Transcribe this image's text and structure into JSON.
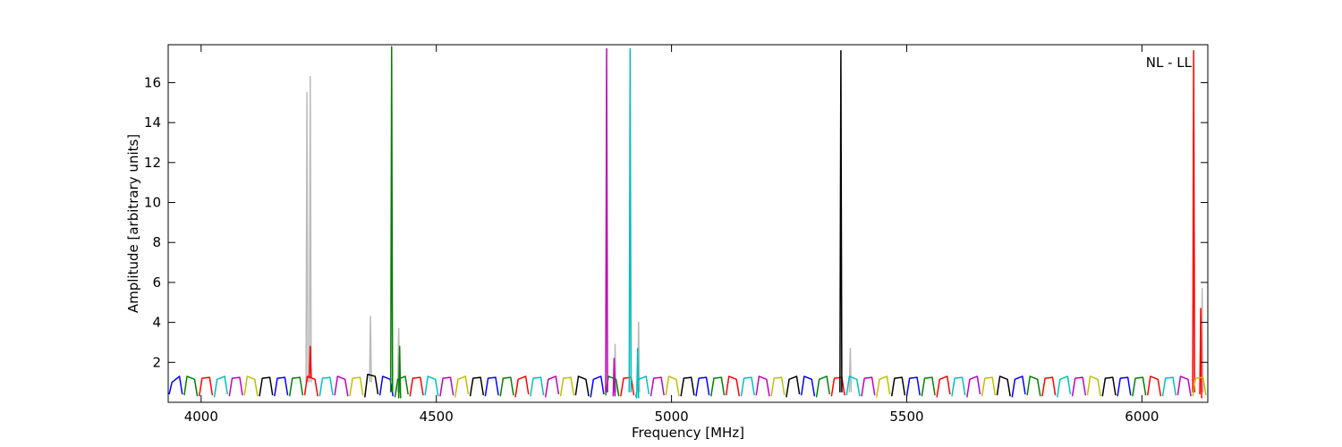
{
  "chart_data": {
    "type": "line",
    "xlabel": "Frequency [MHz]",
    "ylabel": "Amplitude [arbitrary units]",
    "annotation": "NL - LL",
    "xlim": [
      3930,
      6140
    ],
    "ylim": [
      0,
      17.9
    ],
    "xticks": [
      4000,
      4500,
      5000,
      5500,
      6000
    ],
    "yticks": [
      2,
      4,
      6,
      8,
      10,
      12,
      14,
      16
    ],
    "series": [
      {
        "color": "#bbbbbb",
        "x": [
          4223,
          4225,
          4227,
          null,
          4230,
          4232,
          4234,
          null,
          4358,
          4360,
          4362,
          null,
          4418,
          4420,
          4422,
          null,
          4878,
          4880,
          4882,
          null,
          4928,
          4930,
          4932,
          null,
          5378,
          5380,
          5382,
          null,
          6126,
          6128,
          6130
        ],
        "values": [
          1,
          15.5,
          1,
          null,
          1,
          16.3,
          1,
          null,
          1,
          4.3,
          1,
          null,
          0.5,
          3.7,
          0.5,
          null,
          0.5,
          2.9,
          0.5,
          null,
          0.5,
          4.0,
          0.5,
          null,
          0.5,
          2.7,
          0.5,
          null,
          0.5,
          5.7,
          0.5
        ]
      },
      {
        "color": "#0000ff",
        "x": [
          3932,
          3938,
          3954,
          3960,
          null,
          4156,
          4162,
          4178,
          4184,
          null,
          4380,
          4386,
          4402,
          4408,
          null,
          4604,
          4610,
          4626,
          4632,
          null,
          4828,
          4834,
          4850,
          4856,
          null,
          5052,
          5058,
          5074,
          5080,
          null,
          5276,
          5282,
          5298,
          5304,
          null,
          5500,
          5506,
          5522,
          5528,
          null,
          5724,
          5730,
          5746,
          5752,
          null,
          5948,
          5954,
          5970,
          5976
        ],
        "values": [
          0.4,
          1.0,
          1.3,
          0.4,
          null,
          0.3,
          1.2,
          1.25,
          0.35,
          null,
          0.35,
          1.3,
          1.15,
          0.3,
          null,
          0.3,
          1.2,
          1.25,
          0.35,
          null,
          0.25,
          1.15,
          1.3,
          0.4,
          null,
          0.3,
          1.2,
          1.25,
          0.35,
          null,
          0.35,
          1.3,
          1.15,
          0.3,
          null,
          0.3,
          1.2,
          1.25,
          0.35,
          null,
          0.25,
          1.15,
          1.3,
          0.4,
          null,
          0.3,
          1.2,
          1.25,
          0.35
        ]
      },
      {
        "color": "#008000",
        "x": [
          3964,
          3970,
          3986,
          3992,
          null,
          4188,
          4194,
          4210,
          4216,
          null,
          4412,
          4418,
          4434,
          4440,
          null,
          4636,
          4642,
          4658,
          4664,
          null,
          4860,
          4866,
          4882,
          4888,
          null,
          5084,
          5090,
          5106,
          5112,
          null,
          5308,
          5314,
          5330,
          5336,
          null,
          5532,
          5538,
          5554,
          5560,
          null,
          5756,
          5762,
          5778,
          5784,
          null,
          5980,
          5986,
          6002,
          6008,
          null,
          4403,
          4405,
          4407,
          null,
          4420,
          4422,
          4424
        ],
        "values": [
          0.35,
          1.3,
          1.15,
          0.3,
          null,
          0.3,
          1.2,
          1.25,
          0.35,
          null,
          0.25,
          1.15,
          1.3,
          0.4,
          null,
          0.3,
          1.2,
          1.25,
          0.35,
          null,
          0.35,
          1.3,
          1.15,
          0.3,
          null,
          0.3,
          1.2,
          1.25,
          0.35,
          null,
          0.25,
          1.15,
          1.3,
          0.4,
          null,
          0.3,
          1.2,
          1.25,
          0.35,
          null,
          0.35,
          1.3,
          1.15,
          0.3,
          null,
          0.3,
          1.2,
          1.25,
          0.35,
          null,
          0.5,
          17.8,
          0.5,
          null,
          0.2,
          2.8,
          0.2
        ]
      },
      {
        "color": "#ff0000",
        "x": [
          3996,
          4002,
          4018,
          4024,
          null,
          4220,
          4226,
          4242,
          4248,
          null,
          4444,
          4450,
          4466,
          4472,
          null,
          4668,
          4674,
          4690,
          4696,
          null,
          4892,
          4898,
          4914,
          4920,
          null,
          5116,
          5122,
          5138,
          5144,
          null,
          5340,
          5346,
          5362,
          5368,
          null,
          5564,
          5570,
          5586,
          5592,
          null,
          5788,
          5794,
          5810,
          5816,
          null,
          6012,
          6018,
          6034,
          6040,
          null,
          4230,
          4232,
          4234,
          null,
          6108,
          6110,
          6112,
          null,
          6123,
          6125,
          6127
        ],
        "values": [
          0.3,
          1.2,
          1.25,
          0.35,
          null,
          0.35,
          1.3,
          1.15,
          0.3,
          null,
          0.3,
          1.2,
          1.25,
          0.35,
          null,
          0.25,
          1.15,
          1.3,
          0.4,
          null,
          0.3,
          1.2,
          1.25,
          0.35,
          null,
          0.35,
          1.3,
          1.15,
          0.3,
          null,
          0.3,
          1.2,
          1.25,
          0.35,
          null,
          0.25,
          1.15,
          1.3,
          0.4,
          null,
          0.3,
          1.2,
          1.25,
          0.35,
          null,
          0.35,
          1.3,
          1.15,
          0.3,
          null,
          1.2,
          2.8,
          1.2,
          null,
          0.5,
          17.6,
          0.5,
          null,
          0.4,
          4.7,
          0.2
        ]
      },
      {
        "color": "#00bfbf",
        "x": [
          4028,
          4034,
          4050,
          4056,
          null,
          4252,
          4258,
          4274,
          4280,
          null,
          4476,
          4482,
          4498,
          4504,
          null,
          4700,
          4706,
          4722,
          4728,
          null,
          4924,
          4930,
          4946,
          4952,
          null,
          5148,
          5154,
          5170,
          5176,
          null,
          5372,
          5378,
          5394,
          5400,
          null,
          5596,
          5602,
          5618,
          5624,
          null,
          5820,
          5826,
          5842,
          5848,
          null,
          6044,
          6050,
          6066,
          6072,
          null,
          4910,
          4912,
          4914,
          null,
          4926,
          4928,
          4930
        ],
        "values": [
          0.25,
          1.15,
          1.3,
          0.4,
          null,
          0.3,
          1.2,
          1.25,
          0.35,
          null,
          0.35,
          1.3,
          1.15,
          0.3,
          null,
          0.3,
          1.2,
          1.25,
          0.35,
          null,
          0.25,
          1.15,
          1.3,
          0.4,
          null,
          0.3,
          1.2,
          1.25,
          0.35,
          null,
          0.35,
          1.3,
          1.15,
          0.3,
          null,
          0.3,
          1.2,
          1.25,
          0.35,
          null,
          0.25,
          1.15,
          1.3,
          0.4,
          null,
          0.3,
          1.2,
          1.25,
          0.35,
          null,
          0.5,
          17.7,
          0.5,
          null,
          0.2,
          2.7,
          0.2
        ]
      },
      {
        "color": "#bf00bf",
        "x": [
          4060,
          4066,
          4082,
          4088,
          null,
          4284,
          4290,
          4306,
          4312,
          null,
          4508,
          4514,
          4530,
          4536,
          null,
          4732,
          4738,
          4754,
          4760,
          null,
          4956,
          4962,
          4978,
          4984,
          null,
          5180,
          5186,
          5202,
          5208,
          null,
          5404,
          5410,
          5426,
          5432,
          null,
          5628,
          5634,
          5650,
          5656,
          null,
          5852,
          5858,
          5874,
          5880,
          null,
          6076,
          6082,
          6098,
          6104,
          null,
          4860,
          4862,
          4864,
          null,
          4876,
          4878,
          4880
        ],
        "values": [
          0.3,
          1.2,
          1.25,
          0.35,
          null,
          0.35,
          1.3,
          1.15,
          0.3,
          null,
          0.3,
          1.2,
          1.25,
          0.35,
          null,
          0.25,
          1.15,
          1.3,
          0.4,
          null,
          0.3,
          1.2,
          1.25,
          0.35,
          null,
          0.35,
          1.3,
          1.15,
          0.3,
          null,
          0.3,
          1.2,
          1.25,
          0.35,
          null,
          0.25,
          1.15,
          1.3,
          0.4,
          null,
          0.3,
          1.2,
          1.25,
          0.35,
          null,
          0.35,
          1.3,
          1.15,
          0.3,
          null,
          0.5,
          17.7,
          0.5,
          null,
          0.3,
          2.2,
          0.3
        ]
      },
      {
        "color": "#bfbf00",
        "x": [
          4092,
          4098,
          4114,
          4120,
          null,
          4316,
          4322,
          4338,
          4344,
          null,
          4540,
          4546,
          4562,
          4568,
          null,
          4764,
          4770,
          4786,
          4792,
          null,
          4988,
          4994,
          5010,
          5016,
          null,
          5212,
          5218,
          5234,
          5240,
          null,
          5436,
          5442,
          5458,
          5464,
          null,
          5660,
          5666,
          5682,
          5688,
          null,
          5884,
          5890,
          5906,
          5912,
          null,
          6108,
          6114,
          6130,
          6136
        ],
        "values": [
          0.35,
          1.3,
          1.15,
          0.3,
          null,
          0.3,
          1.2,
          1.25,
          0.35,
          null,
          0.25,
          1.15,
          1.3,
          0.4,
          null,
          0.3,
          1.2,
          1.25,
          0.35,
          null,
          0.35,
          1.3,
          1.15,
          0.3,
          null,
          0.3,
          1.2,
          1.25,
          0.35,
          null,
          0.25,
          1.15,
          1.3,
          0.4,
          null,
          0.3,
          1.2,
          1.25,
          0.35,
          null,
          0.35,
          1.3,
          1.15,
          0.3,
          null,
          0.3,
          1.2,
          1.25,
          0.35
        ]
      },
      {
        "color": "#000000",
        "x": [
          4124,
          4130,
          4146,
          4152,
          null,
          4348,
          4354,
          4370,
          4376,
          null,
          4572,
          4578,
          4594,
          4600,
          null,
          4796,
          4802,
          4818,
          4824,
          null,
          5020,
          5026,
          5042,
          5048,
          null,
          5244,
          5250,
          5266,
          5272,
          null,
          5468,
          5474,
          5490,
          5496,
          null,
          5692,
          5698,
          5714,
          5720,
          null,
          5916,
          5922,
          5938,
          5944,
          null,
          5358,
          5360,
          5362
        ],
        "values": [
          0.3,
          1.2,
          1.25,
          0.35,
          null,
          0.25,
          1.4,
          1.3,
          0.4,
          null,
          0.3,
          1.2,
          1.25,
          0.35,
          null,
          0.35,
          1.3,
          1.15,
          0.3,
          null,
          0.3,
          1.2,
          1.25,
          0.35,
          null,
          0.25,
          1.15,
          1.3,
          0.4,
          null,
          0.3,
          1.2,
          1.25,
          0.35,
          null,
          0.35,
          1.3,
          1.15,
          0.3,
          null,
          0.3,
          1.2,
          1.25,
          0.35,
          null,
          0.5,
          17.6,
          0.5
        ]
      }
    ]
  }
}
